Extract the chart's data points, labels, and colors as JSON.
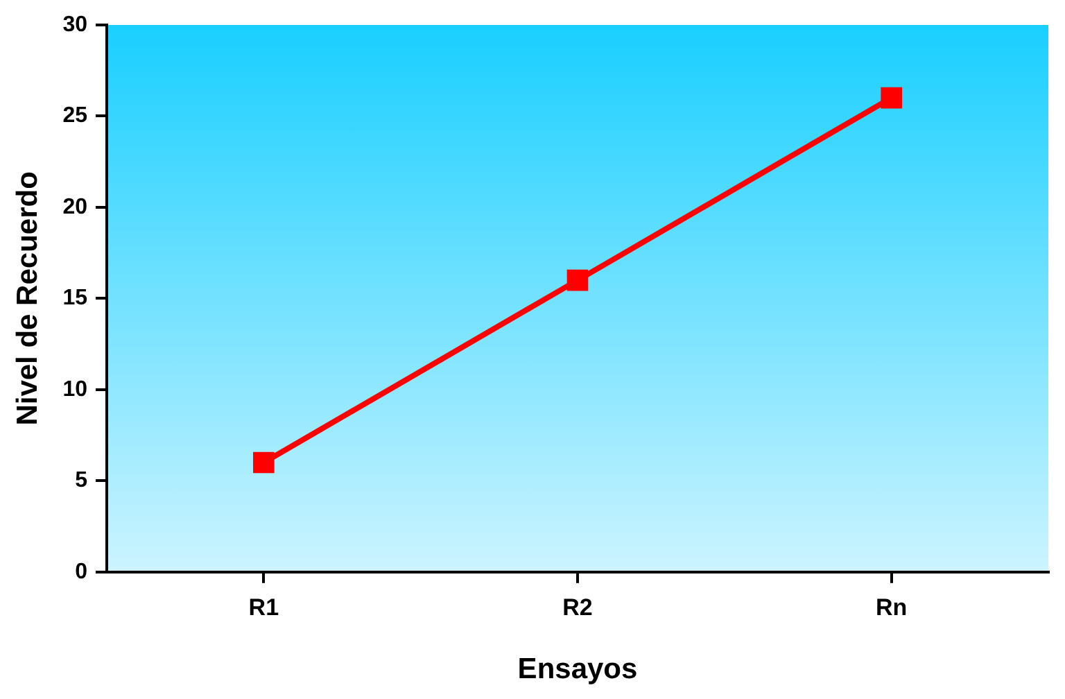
{
  "chart_data": {
    "type": "line",
    "xlabel": "Ensayos",
    "ylabel": "Nivel de Recuerdo",
    "categories": [
      "R1",
      "R2",
      "Rn"
    ],
    "series": [
      {
        "color": "#ff0000",
        "values": [
          6,
          16,
          26
        ]
      }
    ],
    "ylim": [
      0,
      30
    ],
    "yticks": [
      0,
      5,
      10,
      15,
      20,
      25,
      30
    ],
    "grid": false,
    "legend": false,
    "marker": "square",
    "line_style": "solid"
  }
}
